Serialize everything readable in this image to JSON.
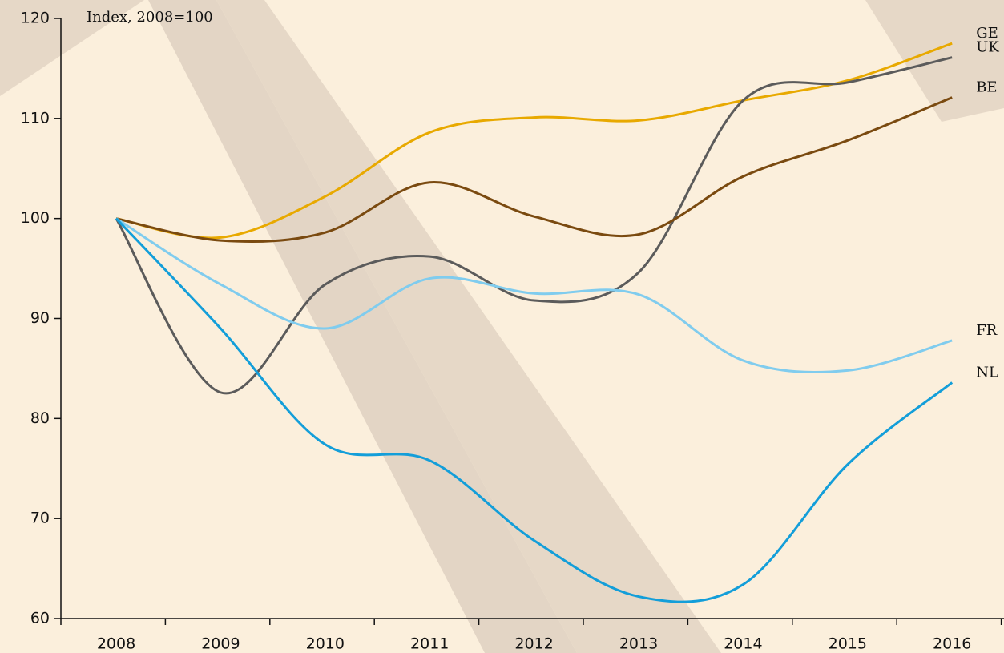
{
  "chart_data": {
    "type": "line",
    "subtitle": "Index, 2008=100",
    "categories": [
      "2008",
      "2009",
      "2010",
      "2011",
      "2012",
      "2013",
      "2014",
      "2015",
      "2016"
    ],
    "series": [
      {
        "name": "GE",
        "color": "#e8a900",
        "values": [
          100,
          98.1,
          102.2,
          108.6,
          110.1,
          109.8,
          111.8,
          113.8,
          117.5
        ]
      },
      {
        "name": "UK",
        "color": "#5b5b5b",
        "values": [
          100,
          82.6,
          93.4,
          96.2,
          91.8,
          94.6,
          111.8,
          113.6,
          116.1
        ]
      },
      {
        "name": "BE",
        "color": "#7a4a10",
        "values": [
          100,
          97.8,
          98.6,
          103.6,
          100.2,
          98.4,
          104.2,
          107.8,
          112.1
        ]
      },
      {
        "name": "FR",
        "color": "#80ccee",
        "values": [
          100,
          93.4,
          89.0,
          94.0,
          92.5,
          92.4,
          85.8,
          84.8,
          87.8
        ]
      },
      {
        "name": "NL",
        "color": "#139ed9",
        "values": [
          100,
          89.0,
          77.4,
          75.8,
          67.8,
          62.2,
          63.4,
          75.4,
          83.6
        ]
      }
    ],
    "ylim": [
      60,
      120
    ],
    "yticks": [
      60,
      70,
      80,
      90,
      100,
      110,
      120
    ]
  }
}
